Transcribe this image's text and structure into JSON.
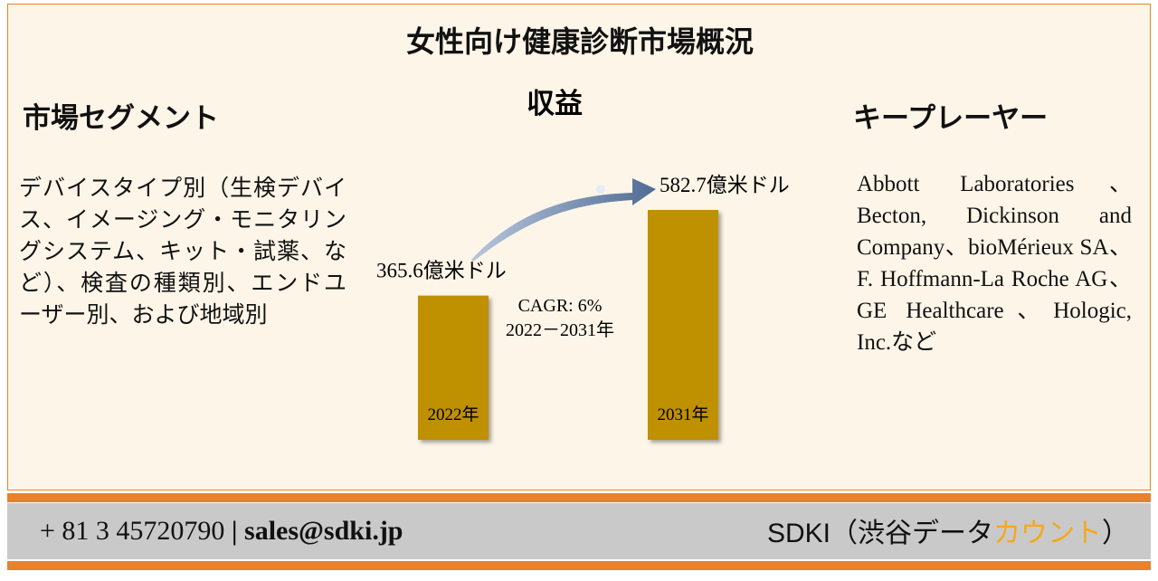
{
  "title": "女性向け健康診断市場概況",
  "segment": {
    "heading": "市場セグメント",
    "text": "デバイスタイプ別（生検デバイス、イメージング・モニタリングシステム、キット・試薬、など）、検査の種類別、エンドユーザー別、および地域別"
  },
  "chart_data": {
    "type": "bar",
    "title": "収益",
    "categories": [
      "2022年",
      "2031年"
    ],
    "values": [
      365.6,
      582.7
    ],
    "value_labels": [
      "365.6億米ドル",
      "582.7億米ドル"
    ],
    "color": "#bf9000",
    "annotations": [
      "CAGR: 6%",
      "2022－2031年"
    ]
  },
  "players": {
    "heading": "キープレーヤー",
    "text": "Abbott Laboratories、Becton, Dickinson and Company、bioMérieux SA、F. Hoffmann-La Roche AG、GE Healthcare、Hologic, Inc.など"
  },
  "footer": {
    "phone": "+ 81 3 45720790",
    "separator": "|",
    "email": "sales@sdki.jp",
    "brand": "SDKI（渋谷データ",
    "brand_accent": "カウント",
    "brand_end": "）"
  }
}
